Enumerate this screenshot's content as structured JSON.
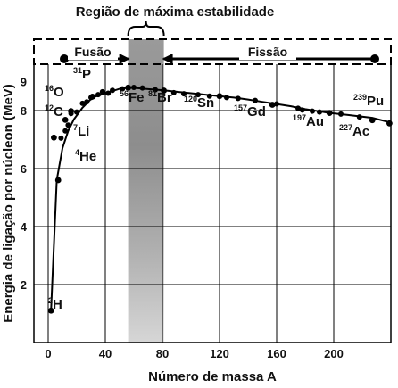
{
  "chart_data": {
    "type": "line",
    "title": "Região de máxima estabilidade",
    "xlabel": "Número de massa A",
    "ylabel": "Energia de ligação por núcleon (MeV)",
    "xlim": [
      -10,
      240
    ],
    "ylim": [
      0,
      9.6
    ],
    "x_ticks": [
      0,
      40,
      80,
      120,
      160,
      200
    ],
    "y_ticks": [
      2,
      4,
      6,
      8
    ],
    "y_top_tick": 9,
    "grid": true,
    "stability_band": [
      56,
      81
    ],
    "regions": {
      "fusion": "Fusão",
      "fission": "Fissão"
    },
    "curve": {
      "x": [
        2,
        6,
        10,
        14,
        18,
        24,
        31,
        40,
        50,
        56,
        62,
        70,
        81,
        90,
        100,
        110,
        120,
        130,
        140,
        150,
        157,
        170,
        180,
        197,
        210,
        227,
        239
      ],
      "y": [
        1.1,
        5.6,
        6.7,
        7.3,
        7.7,
        8.1,
        8.45,
        8.6,
        8.75,
        8.79,
        8.78,
        8.74,
        8.7,
        8.65,
        8.6,
        8.55,
        8.5,
        8.45,
        8.38,
        8.3,
        8.25,
        8.15,
        8.05,
        7.92,
        7.85,
        7.75,
        7.6
      ]
    },
    "scatter": {
      "x": [
        9,
        12,
        14,
        16,
        20,
        24,
        27,
        30,
        35,
        38,
        42,
        45,
        52,
        60,
        66,
        75,
        88,
        95,
        105,
        113,
        125,
        133,
        145,
        160,
        175,
        178,
        185,
        190,
        205,
        218
      ],
      "y": [
        7.05,
        7.3,
        7.5,
        7.9,
        7.95,
        8.25,
        8.3,
        8.45,
        8.55,
        8.65,
        8.6,
        8.7,
        8.75,
        8.8,
        8.78,
        8.72,
        8.62,
        8.58,
        8.55,
        8.5,
        8.45,
        8.42,
        8.35,
        8.23,
        8.08,
        8.02,
        7.98,
        7.95,
        7.88,
        7.78
      ]
    },
    "nuclides": [
      {
        "sup": "2",
        "name": "H",
        "x": 2,
        "y": 1.1
      },
      {
        "sup": "4",
        "name": "He",
        "x": 4,
        "y": 7.07
      },
      {
        "sup": "7",
        "name": "Li",
        "x": 7,
        "y": 5.6
      },
      {
        "sup": "12",
        "name": "C",
        "x": 12,
        "y": 7.68
      },
      {
        "sup": "16",
        "name": "O",
        "x": 16,
        "y": 7.98
      },
      {
        "sup": "31",
        "name": "P",
        "x": 31,
        "y": 8.48
      },
      {
        "sup": "56",
        "name": "Fe",
        "x": 56,
        "y": 8.79
      },
      {
        "sup": "81",
        "name": "Br",
        "x": 81,
        "y": 8.69
      },
      {
        "sup": "120",
        "name": "Sn",
        "x": 120,
        "y": 8.5
      },
      {
        "sup": "157",
        "name": "Gd",
        "x": 157,
        "y": 8.2
      },
      {
        "sup": "197",
        "name": "Au",
        "x": 197,
        "y": 7.92
      },
      {
        "sup": "227",
        "name": "Ac",
        "x": 227,
        "y": 7.67
      },
      {
        "sup": "239",
        "name": "Pu",
        "x": 239,
        "y": 7.56
      }
    ]
  }
}
